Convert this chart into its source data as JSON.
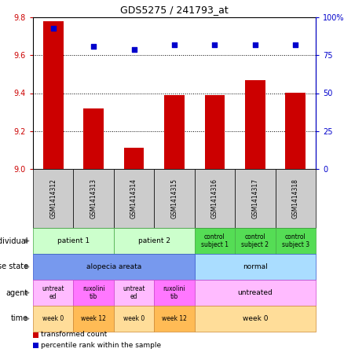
{
  "title": "GDS5275 / 241793_at",
  "samples": [
    "GSM1414312",
    "GSM1414313",
    "GSM1414314",
    "GSM1414315",
    "GSM1414316",
    "GSM1414317",
    "GSM1414318"
  ],
  "bar_values": [
    9.78,
    9.32,
    9.11,
    9.39,
    9.39,
    9.47,
    9.4
  ],
  "dot_values": [
    93,
    81,
    79,
    82,
    82,
    82,
    82
  ],
  "ylim_left": [
    9.0,
    9.8
  ],
  "ylim_right": [
    0,
    100
  ],
  "yticks_left": [
    9.0,
    9.2,
    9.4,
    9.6,
    9.8
  ],
  "yticks_right": [
    0,
    25,
    50,
    75,
    100
  ],
  "ytick_labels_right": [
    "0",
    "25",
    "50",
    "75",
    "100%"
  ],
  "bar_color": "#cc0000",
  "dot_color": "#0000cc",
  "bar_width": 0.5,
  "xticklabel_bg": "#cccccc",
  "individual_row": {
    "cells": [
      {
        "text": "patient 1",
        "span": [
          0,
          1
        ],
        "color": "#ccffcc",
        "border_color": "#44aa44"
      },
      {
        "text": "patient 2",
        "span": [
          2,
          3
        ],
        "color": "#ccffcc",
        "border_color": "#44aa44"
      },
      {
        "text": "control\nsubject 1",
        "span": [
          4,
          4
        ],
        "color": "#55dd55",
        "border_color": "#44aa44"
      },
      {
        "text": "control\nsubject 2",
        "span": [
          5,
          5
        ],
        "color": "#55dd55",
        "border_color": "#44aa44"
      },
      {
        "text": "control\nsubject 3",
        "span": [
          6,
          6
        ],
        "color": "#55dd55",
        "border_color": "#44aa44"
      }
    ]
  },
  "disease_state_row": {
    "cells": [
      {
        "text": "alopecia areata",
        "span": [
          0,
          3
        ],
        "color": "#7799ee",
        "border_color": "#3355cc"
      },
      {
        "text": "normal",
        "span": [
          4,
          6
        ],
        "color": "#aaddff",
        "border_color": "#3355cc"
      }
    ]
  },
  "agent_row": {
    "cells": [
      {
        "text": "untreat\ned",
        "span": [
          0,
          0
        ],
        "color": "#ffbbff",
        "border_color": "#cc44cc"
      },
      {
        "text": "ruxolini\ntib",
        "span": [
          1,
          1
        ],
        "color": "#ff77ff",
        "border_color": "#cc44cc"
      },
      {
        "text": "untreat\ned",
        "span": [
          2,
          2
        ],
        "color": "#ffbbff",
        "border_color": "#cc44cc"
      },
      {
        "text": "ruxolini\ntib",
        "span": [
          3,
          3
        ],
        "color": "#ff77ff",
        "border_color": "#cc44cc"
      },
      {
        "text": "untreated",
        "span": [
          4,
          6
        ],
        "color": "#ffbbff",
        "border_color": "#cc44cc"
      }
    ]
  },
  "time_row": {
    "cells": [
      {
        "text": "week 0",
        "span": [
          0,
          0
        ],
        "color": "#ffdd99",
        "border_color": "#cc8833"
      },
      {
        "text": "week 12",
        "span": [
          1,
          1
        ],
        "color": "#ffbb55",
        "border_color": "#cc8833"
      },
      {
        "text": "week 0",
        "span": [
          2,
          2
        ],
        "color": "#ffdd99",
        "border_color": "#cc8833"
      },
      {
        "text": "week 12",
        "span": [
          3,
          3
        ],
        "color": "#ffbb55",
        "border_color": "#cc8833"
      },
      {
        "text": "week 0",
        "span": [
          4,
          6
        ],
        "color": "#ffdd99",
        "border_color": "#cc8833"
      }
    ]
  },
  "row_labels": [
    "individual",
    "disease state",
    "agent",
    "time"
  ],
  "legend_items": [
    {
      "color": "#cc0000",
      "label": "transformed count"
    },
    {
      "color": "#0000cc",
      "label": "percentile rank within the sample"
    }
  ]
}
